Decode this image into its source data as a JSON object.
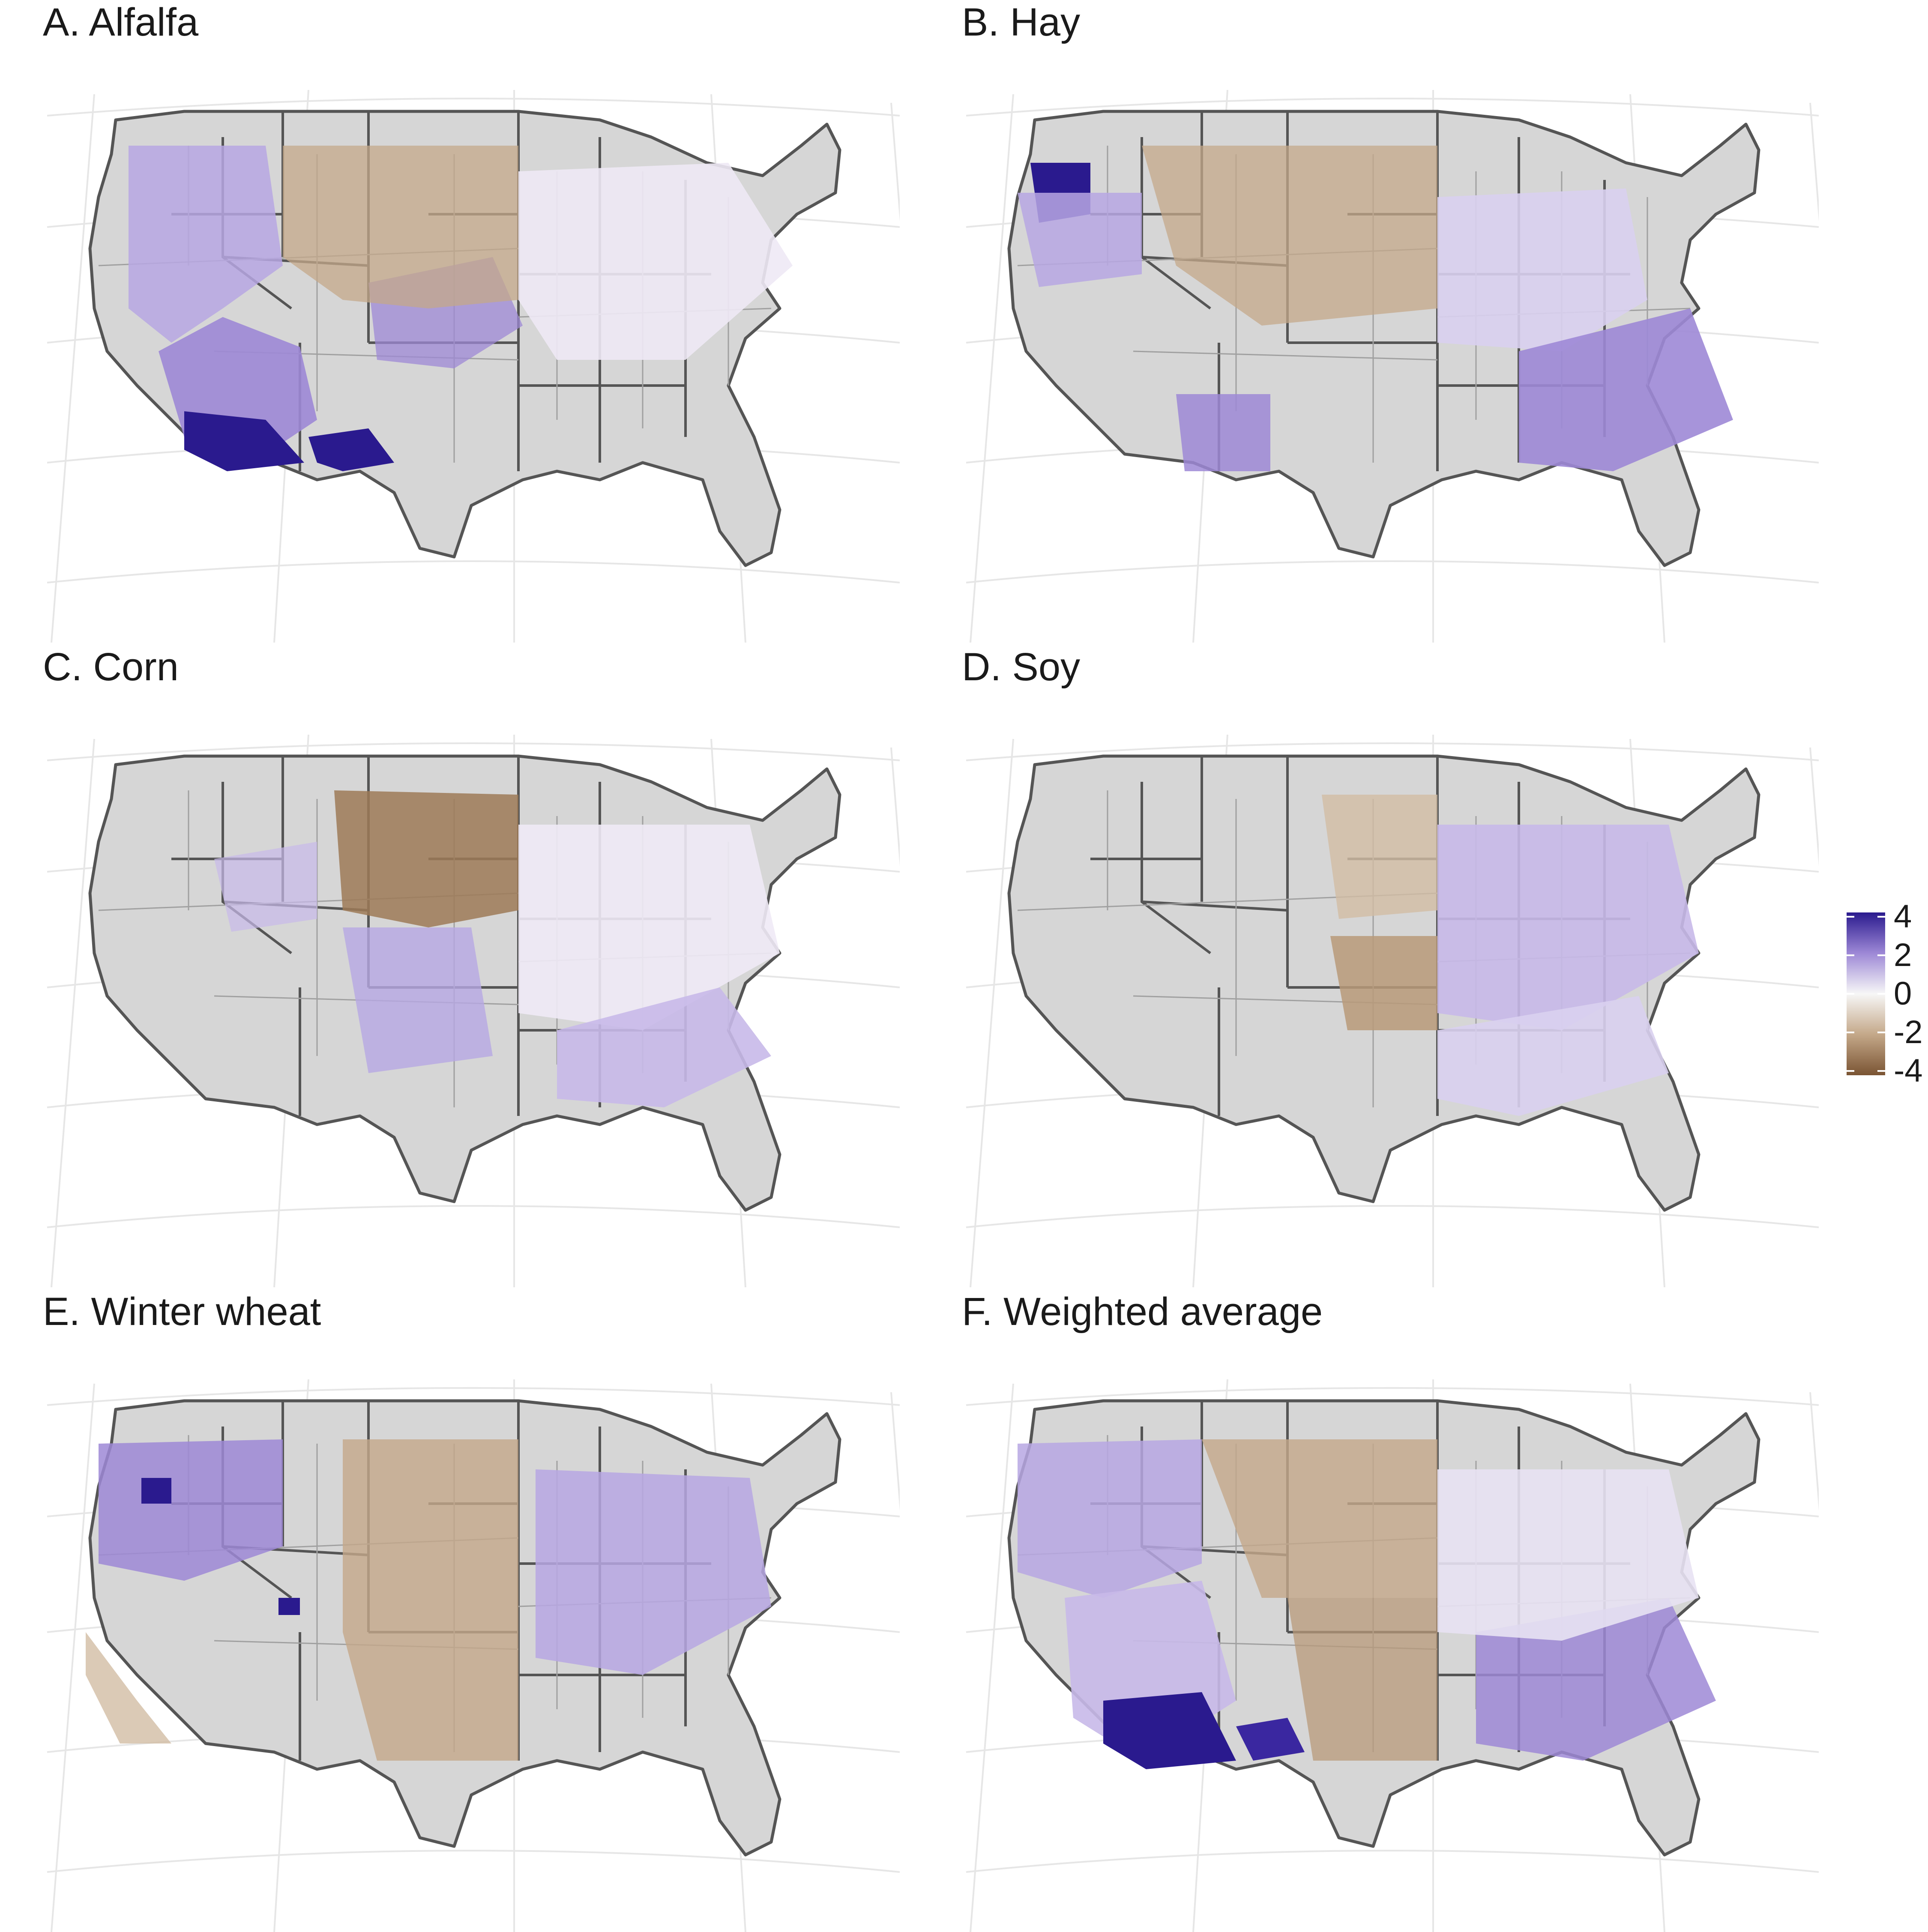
{
  "panels": [
    {
      "id": "A",
      "title": "A. Alfalfa"
    },
    {
      "id": "B",
      "title": "B. Hay"
    },
    {
      "id": "C",
      "title": "C. Corn"
    },
    {
      "id": "D",
      "title": "D. Soy"
    },
    {
      "id": "E",
      "title": "E. Winter wheat"
    },
    {
      "id": "F",
      "title": "F. Weighted average"
    }
  ],
  "legend": {
    "ticks": [
      "4",
      "2",
      "0",
      "-2",
      "-4"
    ],
    "range": [
      -4,
      4
    ],
    "colors": {
      "high": "#2a1a8e",
      "mid_high": "#9d88d6",
      "mid": "#f7f7f7",
      "mid_low": "#c4a889",
      "low": "#7a5433"
    }
  },
  "colors": {
    "no_data": "#d6d6d6",
    "border": "#555555",
    "graticule": "#e6e6e6"
  }
}
